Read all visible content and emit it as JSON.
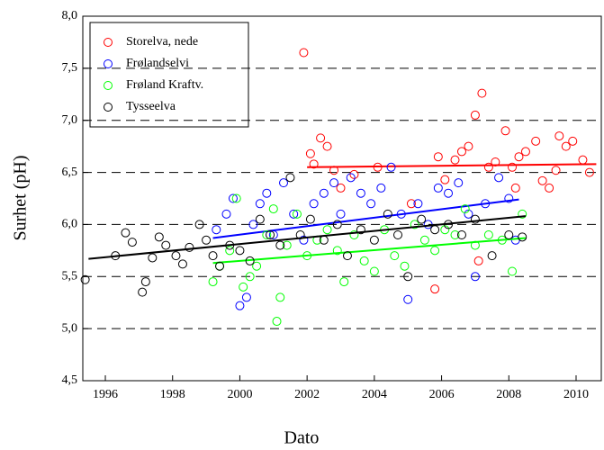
{
  "chart_data": {
    "type": "scatter",
    "x_label": "Dato",
    "y_label": "Surhet (pH)",
    "xlim": [
      1995.33,
      2010.75
    ],
    "ylim": [
      4.5,
      8.0
    ],
    "xticks": [
      1996,
      1998,
      2000,
      2002,
      2004,
      2006,
      2008,
      2010
    ],
    "yticks": [
      {
        "value": 4.5,
        "label": "4,5"
      },
      {
        "value": 5.0,
        "label": "5,0"
      },
      {
        "value": 5.5,
        "label": "5,5"
      },
      {
        "value": 6.0,
        "label": "6,0"
      },
      {
        "value": 6.5,
        "label": "6,5"
      },
      {
        "value": 7.0,
        "label": "7,0"
      },
      {
        "value": 7.5,
        "label": "7,5"
      },
      {
        "value": 8.0,
        "label": "8,0"
      }
    ],
    "grid": true,
    "legend": "upper left",
    "series": [
      {
        "name": "Storelva, nede",
        "color": "#ff0000",
        "x": [
          2001.9,
          2002.1,
          2002.2,
          2002.4,
          2002.6,
          2002.8,
          2003.0,
          2003.4,
          2004.1,
          2005.1,
          2005.8,
          2005.9,
          2006.1,
          2006.4,
          2006.6,
          2006.8,
          2007.0,
          2007.2,
          2007.4,
          2007.6,
          2007.9,
          2008.1,
          2008.3,
          2008.5,
          2008.8,
          2009.0,
          2009.2,
          2009.4,
          2009.5,
          2009.7,
          2009.9,
          2010.2,
          2010.4,
          2007.1,
          2008.2
        ],
        "values": [
          7.65,
          6.68,
          6.58,
          6.83,
          6.75,
          6.52,
          6.35,
          6.48,
          6.55,
          6.2,
          5.38,
          6.65,
          6.43,
          6.62,
          6.7,
          6.75,
          7.05,
          7.26,
          6.55,
          6.6,
          6.9,
          6.55,
          6.65,
          6.7,
          6.8,
          6.42,
          6.35,
          6.52,
          6.85,
          6.75,
          6.8,
          6.62,
          6.5,
          5.65,
          6.35
        ],
        "trend": {
          "x": [
            2002.0,
            2010.6
          ],
          "values": [
            6.55,
            6.58
          ]
        }
      },
      {
        "name": "Frølandselvi",
        "color": "#0000ff",
        "x": [
          1999.3,
          1999.6,
          1999.8,
          2000.0,
          2000.2,
          2000.4,
          2000.6,
          2000.8,
          2001.0,
          2001.3,
          2001.6,
          2001.9,
          2002.2,
          2002.5,
          2002.8,
          2003.0,
          2003.3,
          2003.6,
          2003.9,
          2004.2,
          2004.5,
          2004.8,
          2005.0,
          2005.3,
          2005.6,
          2005.9,
          2006.2,
          2006.5,
          2006.8,
          2007.0,
          2007.3,
          2007.7,
          2008.0,
          2008.2
        ],
        "values": [
          5.95,
          6.1,
          6.25,
          5.22,
          5.3,
          6.0,
          6.2,
          6.3,
          5.9,
          6.4,
          6.1,
          5.85,
          6.2,
          6.3,
          6.4,
          6.1,
          6.45,
          6.3,
          6.2,
          6.35,
          6.55,
          6.1,
          5.28,
          6.2,
          6.0,
          6.35,
          6.3,
          6.4,
          6.1,
          5.5,
          6.2,
          6.45,
          6.25,
          5.85
        ],
        "trend": {
          "x": [
            1999.2,
            2008.3
          ],
          "values": [
            5.87,
            6.24
          ]
        }
      },
      {
        "name": "Frøland Kraftv.",
        "color": "#00ff00",
        "x": [
          1999.2,
          1999.4,
          1999.7,
          1999.9,
          2000.1,
          2000.3,
          2000.5,
          2000.8,
          2001.0,
          2001.1,
          2001.2,
          2001.4,
          2001.7,
          2002.0,
          2002.3,
          2002.6,
          2002.9,
          2003.1,
          2003.4,
          2003.7,
          2004.0,
          2004.3,
          2004.6,
          2004.9,
          2005.2,
          2005.5,
          2005.8,
          2006.1,
          2006.4,
          2006.7,
          2007.0,
          2007.4,
          2007.8,
          2008.1,
          2008.4
        ],
        "values": [
          5.45,
          5.6,
          5.75,
          6.25,
          5.4,
          5.5,
          5.6,
          5.9,
          6.15,
          5.07,
          5.3,
          5.8,
          6.1,
          5.7,
          5.85,
          5.95,
          5.75,
          5.45,
          5.9,
          5.65,
          5.55,
          5.95,
          5.7,
          5.6,
          6.0,
          5.85,
          5.75,
          5.95,
          5.9,
          6.15,
          5.8,
          5.9,
          5.85,
          5.55,
          6.1
        ],
        "trend": {
          "x": [
            1999.2,
            2008.5
          ],
          "values": [
            5.63,
            5.87
          ]
        }
      },
      {
        "name": "Tysseelva",
        "color": "#000000",
        "x": [
          1995.4,
          1996.3,
          1996.6,
          1996.8,
          1997.1,
          1997.2,
          1997.4,
          1997.6,
          1997.8,
          1998.1,
          1998.3,
          1998.5,
          1998.8,
          1999.0,
          1999.2,
          1999.4,
          1999.7,
          2000.0,
          2000.3,
          2000.6,
          2000.9,
          2001.2,
          2001.5,
          2001.8,
          2002.1,
          2002.5,
          2002.9,
          2003.2,
          2003.6,
          2004.0,
          2004.4,
          2004.7,
          2005.0,
          2005.4,
          2005.8,
          2006.2,
          2006.6,
          2007.0,
          2007.5,
          2008.0,
          2008.4
        ],
        "values": [
          5.47,
          5.7,
          5.92,
          5.83,
          5.35,
          5.45,
          5.68,
          5.88,
          5.8,
          5.7,
          5.62,
          5.78,
          6.0,
          5.85,
          5.7,
          5.6,
          5.8,
          5.75,
          5.65,
          6.05,
          5.9,
          5.8,
          6.45,
          5.9,
          6.05,
          5.85,
          6.0,
          5.7,
          5.95,
          5.85,
          6.1,
          5.9,
          5.5,
          6.05,
          5.95,
          6.0,
          5.9,
          6.05,
          5.7,
          5.9,
          5.88
        ],
        "trend": {
          "x": [
            1995.5,
            2008.5
          ],
          "values": [
            5.67,
            6.08
          ]
        }
      }
    ]
  }
}
